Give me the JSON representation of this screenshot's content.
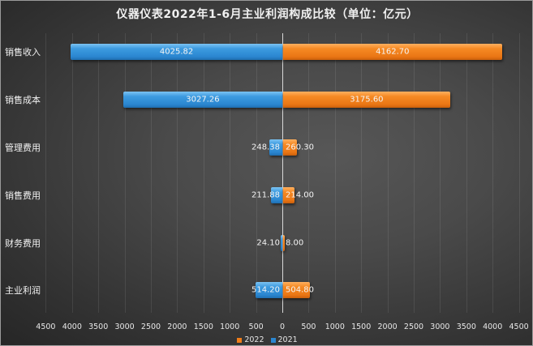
{
  "chart_data": {
    "type": "bar",
    "orientation": "horizontal",
    "layout": "butterfly",
    "title": "仪器仪表2022年1-6月主业利润构成比较（单位：亿元）",
    "categories": [
      "销售收入",
      "销售成本",
      "管理费用",
      "销售费用",
      "财务费用",
      "主业利润"
    ],
    "series": [
      {
        "name": "2021",
        "color": "#2a86d0",
        "side": "left",
        "values": [
          4025.82,
          3027.26,
          248.38,
          211.88,
          24.1,
          514.2
        ],
        "labels": [
          "4025.82",
          "3027.26",
          "248.38",
          "211.88",
          "24.10",
          "514.20"
        ]
      },
      {
        "name": "2022",
        "color": "#f07d18",
        "side": "right",
        "values": [
          4162.7,
          3175.6,
          260.3,
          214.0,
          8.0,
          504.8
        ],
        "labels": [
          "4162.70",
          "3175.60",
          "260.30",
          "214.00",
          "8.00",
          "504.80"
        ]
      }
    ],
    "xlabel": "",
    "ylabel": "",
    "xlim": [
      -4500,
      4500
    ],
    "x_ticks": [
      "4500",
      "4000",
      "3500",
      "3000",
      "2500",
      "2000",
      "1500",
      "1000",
      "500",
      "0",
      "500",
      "1000",
      "1500",
      "2000",
      "2500",
      "3000",
      "3500",
      "4000",
      "4500"
    ],
    "grid": true,
    "legend": {
      "position": "bottom",
      "entries": [
        "2022",
        "2021"
      ]
    }
  },
  "legend": {
    "items": [
      {
        "label": "2022",
        "color": "#f07d18"
      },
      {
        "label": "2021",
        "color": "#2a86d0"
      }
    ]
  }
}
